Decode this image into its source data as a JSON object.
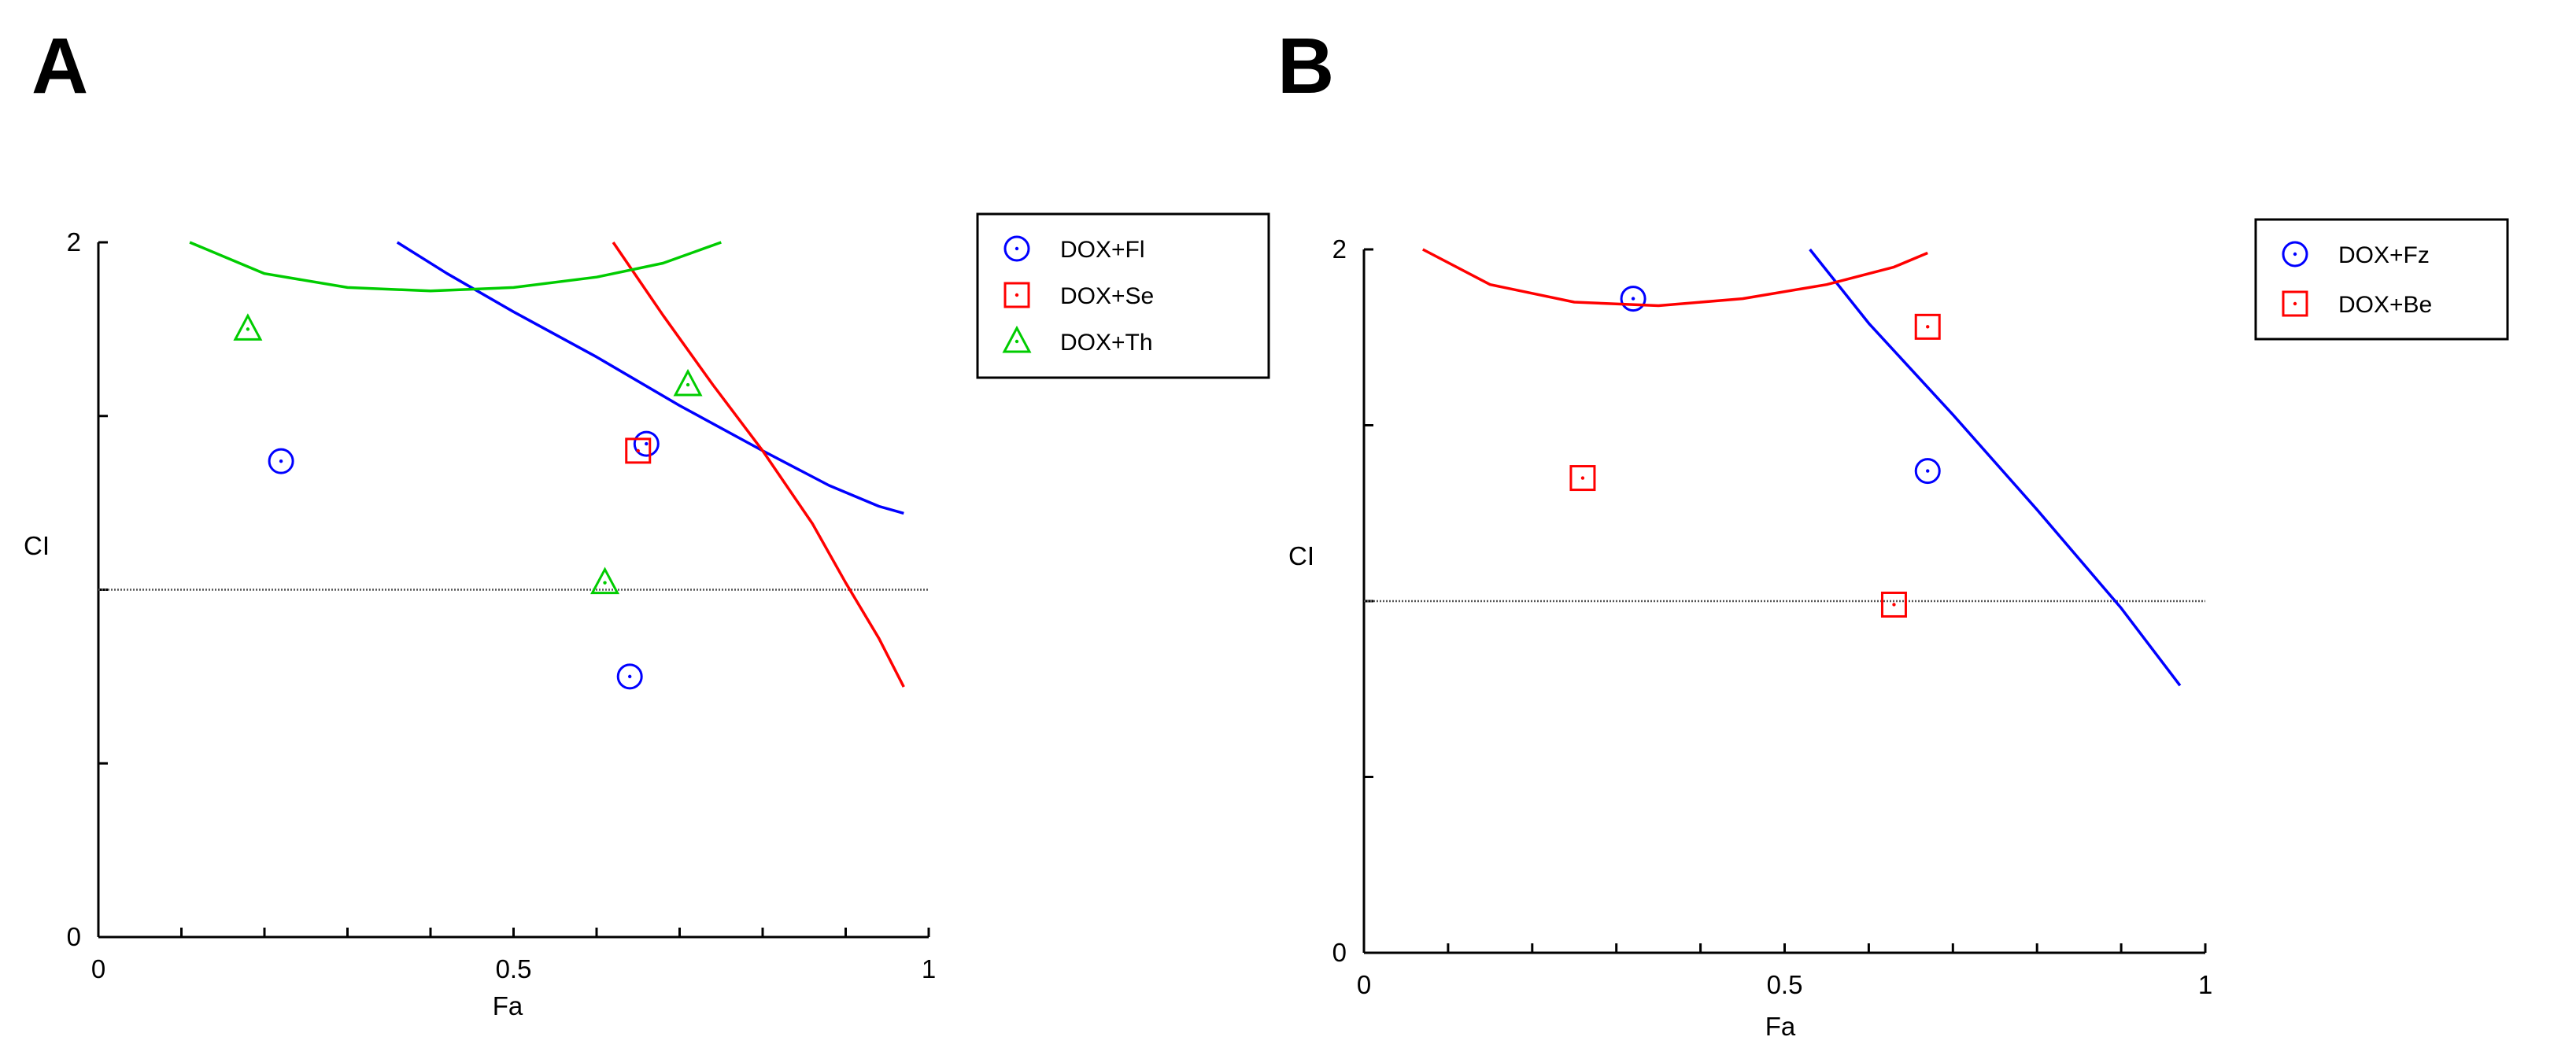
{
  "chart_data": [
    {
      "panel": "A",
      "type": "scatter",
      "xlabel": "Fa",
      "ylabel": "CI",
      "xlim": [
        0,
        1
      ],
      "ylim": [
        0,
        2
      ],
      "xticks": [
        0,
        0.1,
        0.2,
        0.3,
        0.4,
        0.5,
        0.6,
        0.7,
        0.8,
        0.9,
        1
      ],
      "xtick_labels": [
        {
          "value": 0,
          "label": "0"
        },
        {
          "value": 0.5,
          "label": "0.5"
        },
        {
          "value": 1,
          "label": "1"
        }
      ],
      "yticks": [
        0,
        0.5,
        1,
        1.5,
        2
      ],
      "ytick_labels": [
        {
          "value": 0,
          "label": "0"
        },
        {
          "value": 2,
          "label": "2"
        }
      ],
      "reference_line": {
        "y": 1,
        "style": "dotted",
        "color": "#555555"
      },
      "series": [
        {
          "name": "DOX+Fl",
          "color": "#0000ff",
          "marker": "circle",
          "points": [
            [
              0.22,
              1.37
            ],
            [
              0.66,
              1.42
            ],
            [
              0.64,
              0.75
            ]
          ],
          "curve": [
            [
              0.36,
              2.0
            ],
            [
              0.42,
              1.91
            ],
            [
              0.5,
              1.8
            ],
            [
              0.6,
              1.67
            ],
            [
              0.7,
              1.53
            ],
            [
              0.8,
              1.4
            ],
            [
              0.88,
              1.3
            ],
            [
              0.94,
              1.24
            ],
            [
              0.97,
              1.22
            ]
          ]
        },
        {
          "name": "DOX+Se",
          "color": "#ff0000",
          "marker": "square",
          "points": [
            [
              0.65,
              1.4
            ]
          ],
          "curve": [
            [
              0.62,
              2.0
            ],
            [
              0.68,
              1.79
            ],
            [
              0.74,
              1.59
            ],
            [
              0.8,
              1.4
            ],
            [
              0.86,
              1.19
            ],
            [
              0.9,
              1.02
            ],
            [
              0.94,
              0.86
            ],
            [
              0.97,
              0.72
            ]
          ]
        },
        {
          "name": "DOX+Th",
          "color": "#00cc00",
          "marker": "triangle",
          "points": [
            [
              0.18,
              1.75
            ],
            [
              0.71,
              1.59
            ],
            [
              0.61,
              1.02
            ]
          ],
          "curve": [
            [
              0.11,
              2.0
            ],
            [
              0.2,
              1.91
            ],
            [
              0.3,
              1.87
            ],
            [
              0.4,
              1.86
            ],
            [
              0.5,
              1.87
            ],
            [
              0.6,
              1.9
            ],
            [
              0.68,
              1.94
            ],
            [
              0.75,
              2.0
            ]
          ]
        }
      ],
      "legend": {
        "position": "outside-right",
        "entries": [
          "DOX+Fl",
          "DOX+Se",
          "DOX+Th"
        ]
      }
    },
    {
      "panel": "B",
      "type": "scatter",
      "xlabel": "Fa",
      "ylabel": "CI",
      "xlim": [
        0,
        1
      ],
      "ylim": [
        0,
        2
      ],
      "xticks": [
        0,
        0.1,
        0.2,
        0.3,
        0.4,
        0.5,
        0.6,
        0.7,
        0.8,
        0.9,
        1
      ],
      "xtick_labels": [
        {
          "value": 0,
          "label": "0"
        },
        {
          "value": 0.5,
          "label": "0.5"
        },
        {
          "value": 1,
          "label": "1"
        }
      ],
      "yticks": [
        0,
        0.5,
        1,
        1.5,
        2
      ],
      "ytick_labels": [
        {
          "value": 0,
          "label": "0"
        },
        {
          "value": 2,
          "label": "2"
        }
      ],
      "reference_line": {
        "y": 1,
        "style": "dotted",
        "color": "#555555"
      },
      "series": [
        {
          "name": "DOX+Fz",
          "color": "#0000ff",
          "marker": "circle",
          "points": [
            [
              0.32,
              1.86
            ],
            [
              0.67,
              1.37
            ]
          ],
          "curve": [
            [
              0.53,
              2.0
            ],
            [
              0.6,
              1.79
            ],
            [
              0.7,
              1.53
            ],
            [
              0.8,
              1.26
            ],
            [
              0.9,
              0.98
            ],
            [
              0.97,
              0.76
            ]
          ]
        },
        {
          "name": "DOX+Be",
          "color": "#ff0000",
          "marker": "square",
          "points": [
            [
              0.26,
              1.35
            ],
            [
              0.67,
              1.78
            ],
            [
              0.63,
              0.99
            ]
          ],
          "curve": [
            [
              0.07,
              2.0
            ],
            [
              0.15,
              1.9
            ],
            [
              0.25,
              1.85
            ],
            [
              0.35,
              1.84
            ],
            [
              0.45,
              1.86
            ],
            [
              0.55,
              1.9
            ],
            [
              0.63,
              1.95
            ],
            [
              0.67,
              1.99
            ]
          ]
        }
      ],
      "legend": {
        "position": "outside-right",
        "entries": [
          "DOX+Fz",
          "DOX+Be"
        ]
      }
    }
  ]
}
